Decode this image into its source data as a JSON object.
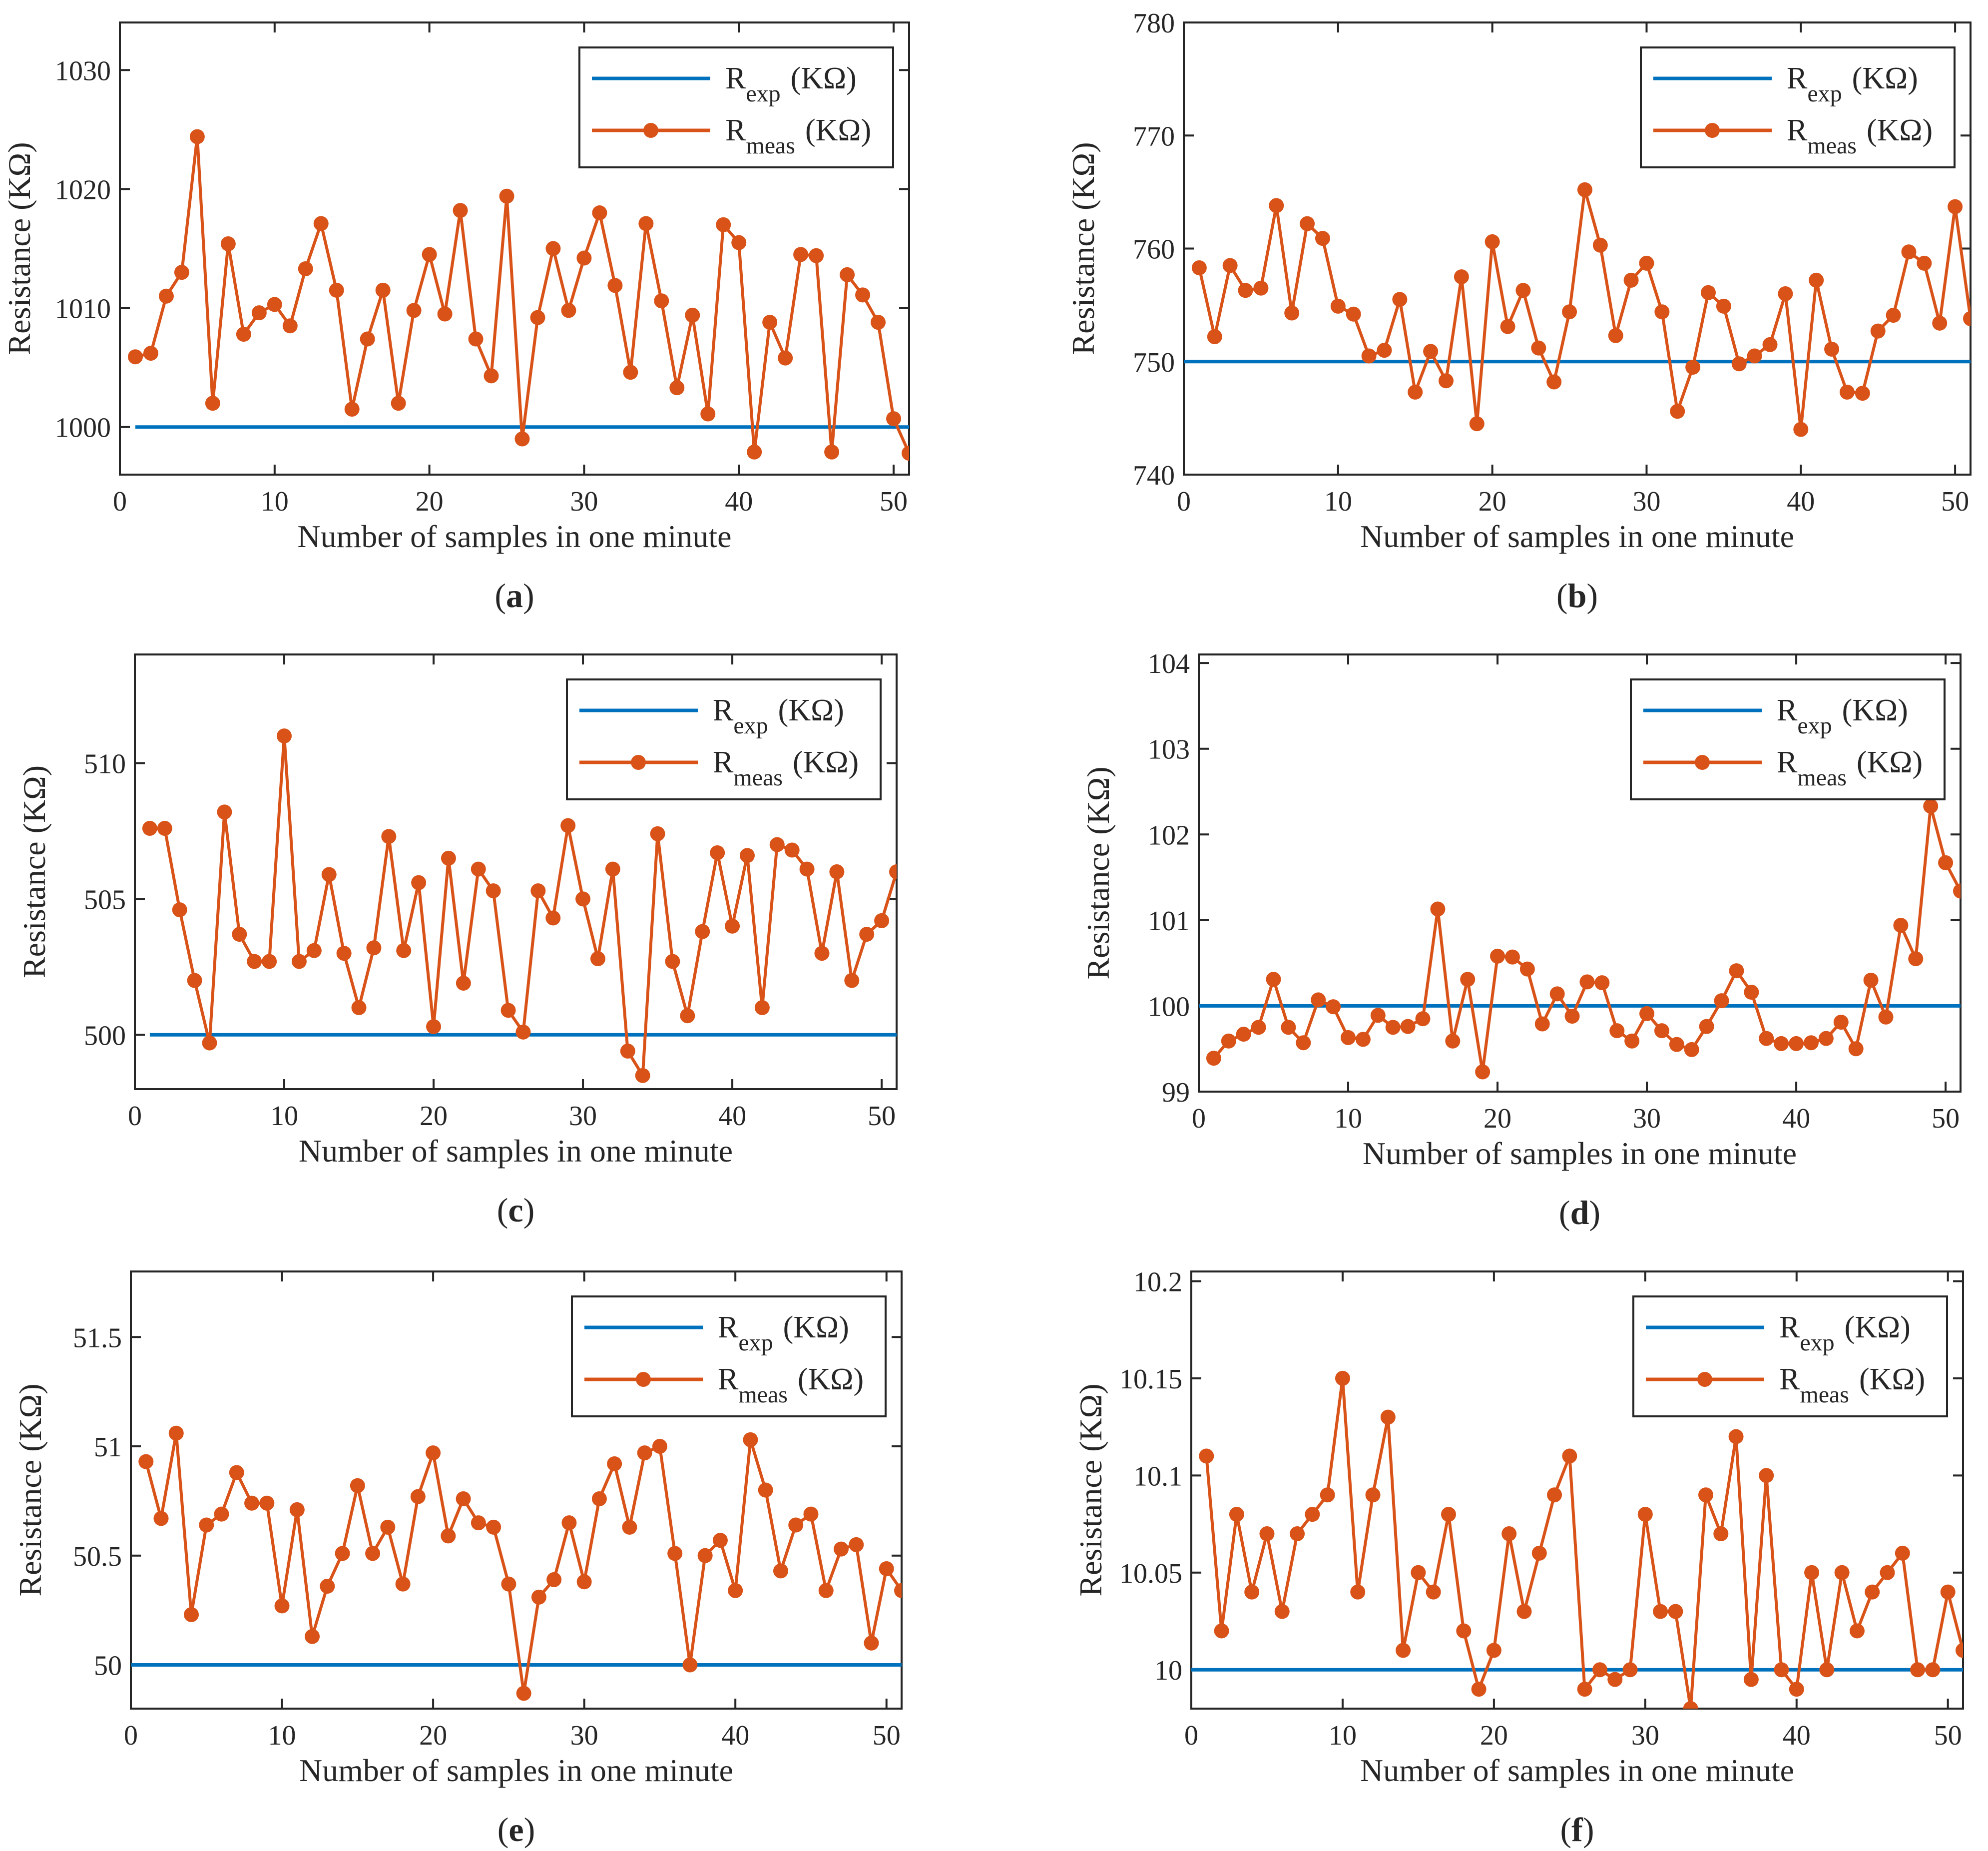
{
  "figure": {
    "panels": [
      {
        "id": "a",
        "caption_letter": "a"
      },
      {
        "id": "b",
        "caption_letter": "b"
      },
      {
        "id": "c",
        "caption_letter": "c"
      },
      {
        "id": "d",
        "caption_letter": "d"
      },
      {
        "id": "e",
        "caption_letter": "e"
      },
      {
        "id": "f",
        "caption_letter": "f"
      }
    ]
  },
  "colors": {
    "expected": "#0072BD",
    "measured": "#D95319",
    "axis": "#262626"
  },
  "chart_data": [
    {
      "type": "line",
      "panel": "a",
      "xlabel": "Number of samples in one minute",
      "ylabel": "Resistance (KΩ)",
      "xlim": [
        0,
        51
      ],
      "ylim": [
        996,
        1034
      ],
      "xticks": [
        0,
        10,
        20,
        30,
        40,
        50
      ],
      "yticks": [
        1000,
        1010,
        1020,
        1030
      ],
      "ytick_labels": [
        "1000",
        "1010",
        "1020",
        "1030"
      ],
      "legend": {
        "position": "top-right",
        "entries": [
          {
            "base": "R",
            "sub": "exp",
            "unit": "(KΩ)"
          },
          {
            "base": "R",
            "sub": "meas",
            "unit": "(KΩ)"
          }
        ]
      },
      "series": [
        {
          "name": "R_exp (KΩ)",
          "style": "line",
          "x": [
            1,
            51
          ],
          "values": [
            1000,
            1000
          ]
        },
        {
          "name": "R_meas (KΩ)",
          "style": "line-marker",
          "values": [
            1005.9,
            1006.2,
            1011.0,
            1013.0,
            1024.4,
            1002.0,
            1015.4,
            1007.8,
            1009.6,
            1010.3,
            1008.5,
            1013.3,
            1017.1,
            1011.5,
            1001.5,
            1007.4,
            1011.5,
            1002.0,
            1009.8,
            1014.5,
            1009.5,
            1018.2,
            1007.4,
            1004.3,
            1019.4,
            999.0,
            1009.2,
            1015.0,
            1009.8,
            1014.2,
            1018.0,
            1011.9,
            1004.6,
            1017.1,
            1010.6,
            1003.3,
            1009.4,
            1001.1,
            1017.0,
            1015.5,
            997.9,
            1008.8,
            1005.8,
            1014.5,
            1014.4,
            997.9,
            1012.8,
            1011.1,
            1008.8,
            1000.7,
            997.8
          ]
        }
      ]
    },
    {
      "type": "line",
      "panel": "b",
      "xlabel": "Number of samples in one minute",
      "ylabel": "Resistance (KΩ)",
      "xlim": [
        0,
        51
      ],
      "ylim": [
        740,
        780
      ],
      "xticks": [
        0,
        10,
        20,
        30,
        40,
        50
      ],
      "yticks": [
        740,
        750,
        760,
        770,
        780
      ],
      "ytick_labels": [
        "740",
        "750",
        "760",
        "770",
        "780"
      ],
      "legend": {
        "position": "top-right",
        "entries": [
          {
            "base": "R",
            "sub": "exp",
            "unit": "(KΩ)"
          },
          {
            "base": "R",
            "sub": "meas",
            "unit": "(KΩ)"
          }
        ]
      },
      "series": [
        {
          "name": "R_exp (KΩ)",
          "style": "line",
          "x": [
            0,
            51
          ],
          "values": [
            750,
            750
          ]
        },
        {
          "name": "R_meas (KΩ)",
          "style": "line-marker",
          "values": [
            758.3,
            752.2,
            758.5,
            756.3,
            756.5,
            763.8,
            754.3,
            762.2,
            760.9,
            754.9,
            754.2,
            750.5,
            751.0,
            755.5,
            747.3,
            750.9,
            748.3,
            757.5,
            744.5,
            760.6,
            753.1,
            756.3,
            751.2,
            748.2,
            754.4,
            765.2,
            760.3,
            752.3,
            757.2,
            758.7,
            754.4,
            745.6,
            749.5,
            756.1,
            754.9,
            749.8,
            750.5,
            751.5,
            756.0,
            744.0,
            757.2,
            751.1,
            747.3,
            747.2,
            752.7,
            754.1,
            759.7,
            758.7,
            753.4,
            763.7,
            753.8
          ]
        }
      ]
    },
    {
      "type": "line",
      "panel": "c",
      "xlabel": "Number of samples in one minute",
      "ylabel": "Resistance (KΩ)",
      "xlim": [
        0,
        51
      ],
      "ylim": [
        498,
        514
      ],
      "xticks": [
        0,
        10,
        20,
        30,
        40,
        50
      ],
      "yticks": [
        500,
        505,
        510
      ],
      "ytick_labels": [
        "500",
        "505",
        "510"
      ],
      "legend": {
        "position": "top-right",
        "entries": [
          {
            "base": "R",
            "sub": "exp",
            "unit": "(KΩ)"
          },
          {
            "base": "R",
            "sub": "meas",
            "unit": "(KΩ)"
          }
        ]
      },
      "series": [
        {
          "name": "R_exp (KΩ)",
          "style": "line",
          "x": [
            1,
            51
          ],
          "values": [
            500,
            500
          ]
        },
        {
          "name": "R_meas (KΩ)",
          "style": "line-marker",
          "values": [
            507.6,
            507.6,
            504.6,
            502.0,
            499.7,
            508.2,
            503.7,
            502.7,
            502.7,
            511.0,
            502.7,
            503.1,
            505.9,
            503.0,
            501.0,
            503.2,
            507.3,
            503.1,
            505.6,
            500.3,
            506.5,
            501.9,
            506.1,
            505.3,
            500.9,
            500.1,
            505.3,
            504.3,
            507.7,
            505.0,
            502.8,
            506.1,
            499.4,
            498.5,
            507.4,
            502.7,
            500.7,
            503.8,
            506.7,
            504.0,
            506.6,
            501.0,
            507.0,
            506.8,
            506.1,
            503.0,
            506.0,
            502.0,
            503.7,
            504.2,
            506.0
          ]
        }
      ]
    },
    {
      "type": "line",
      "panel": "d",
      "xlabel": "Number of samples in one minute",
      "ylabel": "Resistance (KΩ)",
      "xlim": [
        0,
        51
      ],
      "ylim": [
        99,
        104.1
      ],
      "xticks": [
        0,
        10,
        20,
        30,
        40,
        50
      ],
      "yticks": [
        99,
        100,
        101,
        102,
        103,
        104
      ],
      "ytick_labels": [
        "99",
        "100",
        "101",
        "102",
        "103",
        "104"
      ],
      "legend": {
        "position": "top-right",
        "entries": [
          {
            "base": "R",
            "sub": "exp",
            "unit": "(KΩ)"
          },
          {
            "base": "R",
            "sub": "meas",
            "unit": "(KΩ)"
          }
        ]
      },
      "series": [
        {
          "name": "R_exp (KΩ)",
          "style": "line",
          "x": [
            0,
            51
          ],
          "values": [
            100,
            100
          ]
        },
        {
          "name": "R_meas (KΩ)",
          "style": "line-marker",
          "values": [
            99.39,
            99.59,
            99.67,
            99.75,
            100.31,
            99.75,
            99.57,
            100.07,
            99.99,
            99.63,
            99.61,
            99.89,
            99.75,
            99.76,
            99.85,
            101.13,
            99.59,
            100.31,
            99.23,
            100.58,
            100.57,
            100.43,
            99.79,
            100.14,
            99.88,
            100.28,
            100.27,
            99.71,
            99.59,
            99.91,
            99.71,
            99.55,
            99.49,
            99.76,
            100.06,
            100.41,
            100.16,
            99.62,
            99.56,
            99.56,
            99.57,
            99.62,
            99.81,
            99.5,
            100.3,
            99.87,
            100.94,
            100.55,
            102.33,
            101.67,
            101.34
          ]
        }
      ]
    },
    {
      "type": "line",
      "panel": "e",
      "xlabel": "Number of samples in one minute",
      "ylabel": "Resistance (KΩ)",
      "xlim": [
        0,
        51
      ],
      "ylim": [
        49.8,
        51.8
      ],
      "xticks": [
        0,
        10,
        20,
        30,
        40,
        50
      ],
      "yticks": [
        50,
        50.5,
        51,
        51.5
      ],
      "ytick_labels": [
        "50",
        "50.5",
        "51",
        "51.5"
      ],
      "legend": {
        "position": "top-right",
        "entries": [
          {
            "base": "R",
            "sub": "exp",
            "unit": "(KΩ)"
          },
          {
            "base": "R",
            "sub": "meas",
            "unit": "(KΩ)"
          }
        ]
      },
      "series": [
        {
          "name": "R_exp (KΩ)",
          "style": "line",
          "x": [
            0,
            51
          ],
          "values": [
            50,
            50
          ]
        },
        {
          "name": "R_meas (KΩ)",
          "style": "line-marker",
          "values": [
            50.93,
            50.67,
            51.06,
            50.23,
            50.64,
            50.69,
            50.88,
            50.74,
            50.74,
            50.27,
            50.71,
            50.13,
            50.36,
            50.51,
            50.82,
            50.51,
            50.63,
            50.37,
            50.77,
            50.97,
            50.59,
            50.76,
            50.65,
            50.63,
            50.37,
            49.87,
            50.31,
            50.39,
            50.65,
            50.38,
            50.76,
            50.92,
            50.63,
            50.97,
            51.0,
            50.51,
            50.0,
            50.5,
            50.57,
            50.34,
            51.03,
            50.8,
            50.43,
            50.64,
            50.69,
            50.34,
            50.53,
            50.55,
            50.1,
            50.44,
            50.34
          ]
        }
      ]
    },
    {
      "type": "line",
      "panel": "f",
      "xlabel": "Number of samples in one minute",
      "ylabel": "Resistance (KΩ)",
      "xlim": [
        0,
        51
      ],
      "ylim": [
        9.98,
        10.205
      ],
      "xticks": [
        0,
        10,
        20,
        30,
        40,
        50
      ],
      "yticks": [
        10,
        10.05,
        10.1,
        10.15,
        10.2
      ],
      "ytick_labels": [
        "10",
        "10.05",
        "10.1",
        "10.15",
        "10.2"
      ],
      "legend": {
        "position": "top-right",
        "entries": [
          {
            "base": "R",
            "sub": "exp",
            "unit": "(KΩ)"
          },
          {
            "base": "R",
            "sub": "meas",
            "unit": "(KΩ)"
          }
        ]
      },
      "series": [
        {
          "name": "R_exp (KΩ)",
          "style": "line",
          "x": [
            0,
            51
          ],
          "values": [
            10,
            10
          ]
        },
        {
          "name": "R_meas (KΩ)",
          "style": "line-marker",
          "values": [
            10.11,
            10.02,
            10.08,
            10.04,
            10.07,
            10.03,
            10.07,
            10.08,
            10.09,
            10.15,
            10.04,
            10.09,
            10.13,
            10.01,
            10.05,
            10.04,
            10.08,
            10.02,
            9.99,
            10.01,
            10.07,
            10.03,
            10.06,
            10.09,
            10.11,
            9.99,
            10.0,
            9.995,
            10.0,
            10.08,
            10.03,
            10.03,
            9.98,
            10.09,
            10.07,
            10.12,
            9.995,
            10.1,
            10.0,
            9.99,
            10.05,
            10.0,
            10.05,
            10.02,
            10.04,
            10.05,
            10.06,
            10.0,
            10.0,
            10.04,
            10.01
          ]
        }
      ]
    }
  ]
}
